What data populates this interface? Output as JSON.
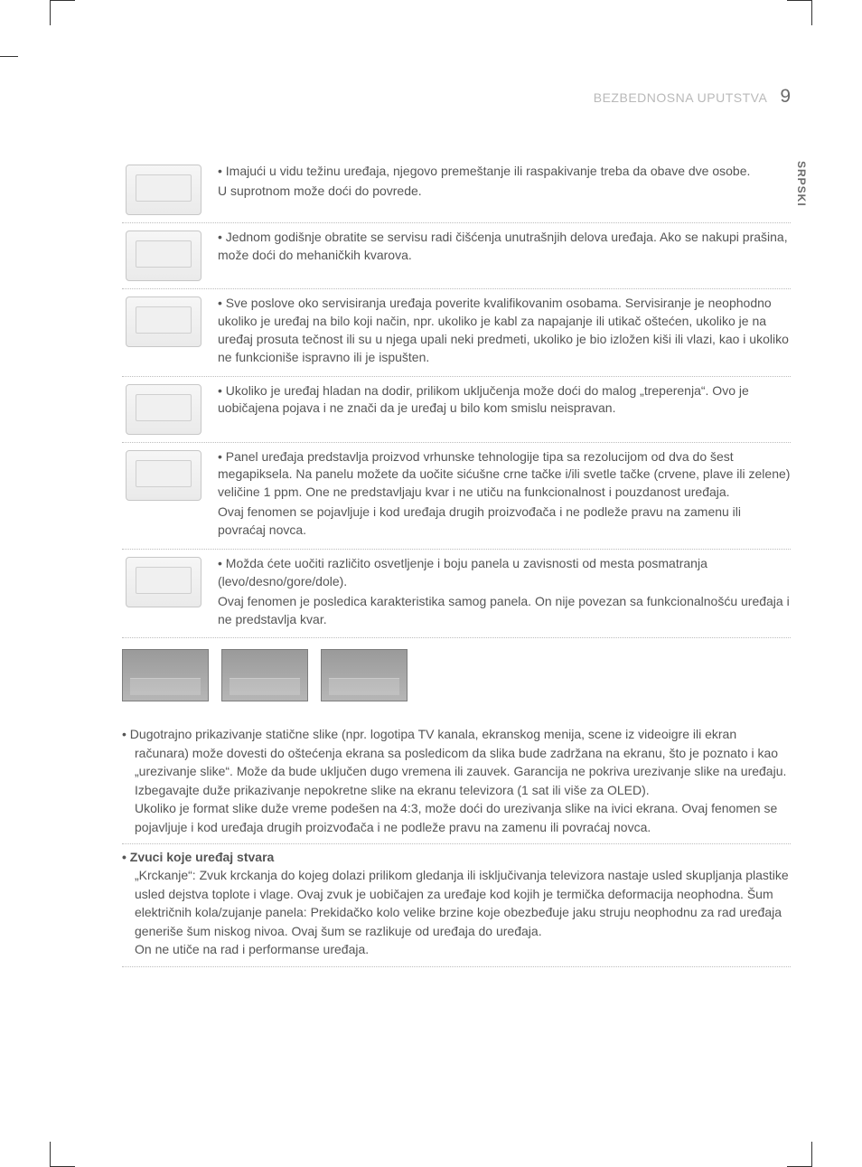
{
  "header": {
    "section_title": "BEZBEDNOSNA UPUTSTVA",
    "page_number": "9"
  },
  "lang_tab": "SRPSKI",
  "rows": [
    {
      "icon": "two-people-carry-tv-icon",
      "lines": [
        "Imajući u vidu težinu uređaja, njegovo premeštanje ili raspakivanje treba da obave dve osobe.",
        "U suprotnom može doći do povrede."
      ]
    },
    {
      "icon": "cleaning-tv-icon",
      "lines": [
        "Jednom godišnje obratite se servisu radi čišćenja unutrašnjih delova uređaja. Ako se nakupi prašina, može doći do mehaničkih kvarova."
      ]
    },
    {
      "icon": "service-technician-icon",
      "lines": [
        "Sve poslove oko servisiranja uređaja poverite kvalifikovanim osobama. Servisiranje je neophodno ukoliko je uređaj na bilo koji način, npr. ukoliko je kabl za napajanje ili utikač oštećen, ukoliko je na uređaj prosuta tečnost ili su u njega upali neki predmeti, ukoliko je bio izložen kiši ili vlazi, kao i ukoliko ne funkcioniše ispravno ili je ispušten."
      ]
    },
    {
      "icon": "cold-tv-flicker-icon",
      "lines": [
        "Ukoliko je uređaj hladan na dodir, prilikom uključenja može doći do malog „treperenja“. Ovo je uobičajena pojava i ne znači da je uređaj u bilo kom smislu neispravan."
      ]
    },
    {
      "icon": "pixel-dots-panel-icon",
      "lines": [
        "Panel uređaja predstavlja proizvod vrhunske tehnologije tipa sa rezolucijom od dva do šest megapiksela. Na panelu možete da uočite sićušne crne tačke i/ili svetle tačke (crvene, plave ili zelene) veličine 1 ppm. One ne predstavljaju kvar i ne utiču na funkcionalnost i pouzdanost uređaja.",
        "Ovaj fenomen se pojavljuje i kod uređaja drugih proizvođača i ne podleže pravu na zamenu ili povraćaj novca."
      ]
    },
    {
      "icon": "viewing-angle-icon",
      "lines": [
        "Možda ćete uočiti različito osvetljenje i boju panela u zavisnosti od mesta posmatranja (levo/desno/gore/dole).",
        "Ovaj fenomen je posledica karakteristika samog panela. On nije povezan sa funkcionalnošću uređaja i ne predstavlja kvar."
      ]
    }
  ],
  "strip_images": [
    "ghost-image-1",
    "ghost-image-2",
    "ghost-image-3"
  ],
  "big_list": [
    {
      "lead": "",
      "body": "Dugotrajno prikazivanje statične slike (npr. logotipa TV kanala, ekranskog menija, scene iz videoigre ili ekran računara) može dovesti do oštećenja ekrana sa posledicom da slika bude zadržana na ekranu, što je poznato i kao „urezivanje slike“. Može da bude uključen dugo vremena ili zauvek. Garancija ne pokriva urezivanje slike na uređaju.\nIzbegavajte duže prikazivanje nepokretne slike na ekranu televizora (1 sat ili više za OLED).\nUkoliko je format slike duže vreme podešen na 4:3, može doći do urezivanja slike na ivici ekrana. Ovaj fenomen se pojavljuje i kod uređaja drugih proizvođača i ne podleže pravu na zamenu ili povraćaj novca."
    },
    {
      "lead": "Zvuci koje uređaj stvara",
      "body": "„Krckanje“: Zvuk krckanja do kojeg dolazi prilikom gledanja ili isključivanja televizora nastaje usled skupljanja plastike usled dejstva toplote i vlage. Ovaj zvuk je uobičajen za uređaje kod kojih je termička deformacija neophodna. Šum električnih kola/zujanje panela: Prekidačko kolo velike brzine koje obezbeđuje jaku struju neophodnu za rad uređaja generiše šum niskog nivoa. Ovaj šum se razlikuje od uređaja do uređaja.\nOn ne utiče na rad i performanse uređaja."
    }
  ]
}
